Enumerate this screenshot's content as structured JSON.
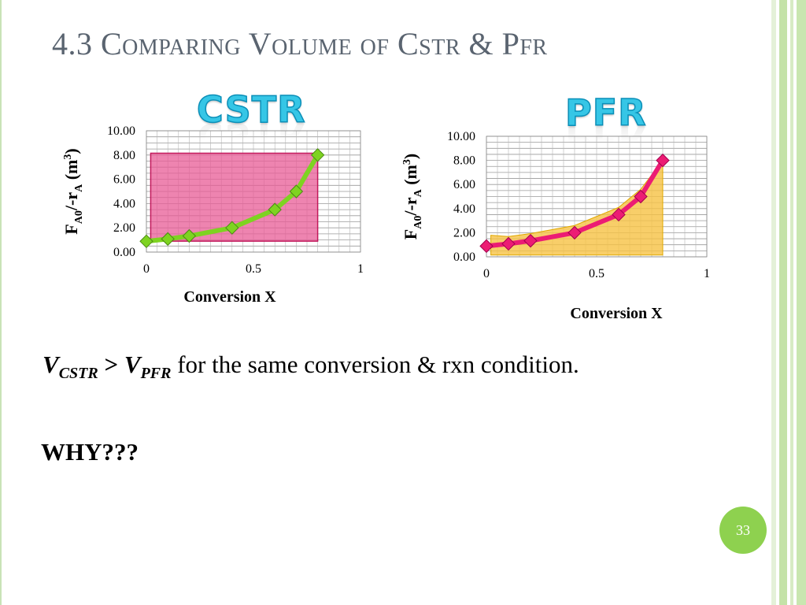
{
  "slide": {
    "title": "4.3 Comparing Volume of Cstr & Pfr",
    "statement_prefix_v1": "V",
    "statement_sub1": "CSTR",
    "statement_gt": " > ",
    "statement_prefix_v2": "V",
    "statement_sub2": "PFR",
    "statement_rest": " for the same conversion & rxn condition.",
    "question": "WHY???",
    "page_number": "33"
  },
  "colors": {
    "cstr_fill": "#e85b95",
    "cstr_line": "#7ed321",
    "pfr_fill": "#f6c243",
    "pfr_line": "#ec1c74",
    "title_gray": "#5a6470",
    "badge_green": "#8ed14f"
  },
  "chart_data": [
    {
      "type": "line",
      "heading": "CSTR",
      "xlabel": "Conversion  X",
      "ylabel": "FA0/-rA (m3)",
      "ylabel_parts": {
        "F": "F",
        "sub_a0": "A0",
        "mid": "/-r",
        "sub_a": "A",
        "unit_open": " (m",
        "sup": "3",
        "unit_close": ")"
      },
      "x": [
        0,
        0.1,
        0.2,
        0.4,
        0.6,
        0.7,
        0.8
      ],
      "y": [
        0.89,
        1.08,
        1.33,
        2.0,
        3.5,
        5.0,
        8.0
      ],
      "xlim": [
        0,
        1
      ],
      "ylim": [
        0,
        10
      ],
      "xticks": [
        "0",
        "0.5",
        "1"
      ],
      "yticks": [
        "0.00",
        "2.00",
        "4.00",
        "6.00",
        "8.00",
        "10.00"
      ],
      "grid": true,
      "shaded_area": "rectangle",
      "marker": "diamond"
    },
    {
      "type": "line",
      "heading": "PFR",
      "xlabel": "Conversion  X",
      "ylabel": "FA0/-rA (m3)",
      "ylabel_parts": {
        "F": "F",
        "sub_a0": "A0",
        "mid": "/-r",
        "sub_a": "A",
        "unit_open": " (m",
        "sup": "3",
        "unit_close": ")"
      },
      "x": [
        0,
        0.1,
        0.2,
        0.4,
        0.6,
        0.7,
        0.8
      ],
      "y": [
        0.89,
        1.08,
        1.33,
        2.0,
        3.5,
        5.0,
        8.0
      ],
      "xlim": [
        0,
        1
      ],
      "ylim": [
        0,
        10
      ],
      "xticks": [
        "0",
        "0.5",
        "1"
      ],
      "yticks": [
        "0.00",
        "2.00",
        "4.00",
        "6.00",
        "8.00",
        "10.00"
      ],
      "grid": true,
      "shaded_area": "under-curve",
      "marker": "diamond"
    }
  ]
}
